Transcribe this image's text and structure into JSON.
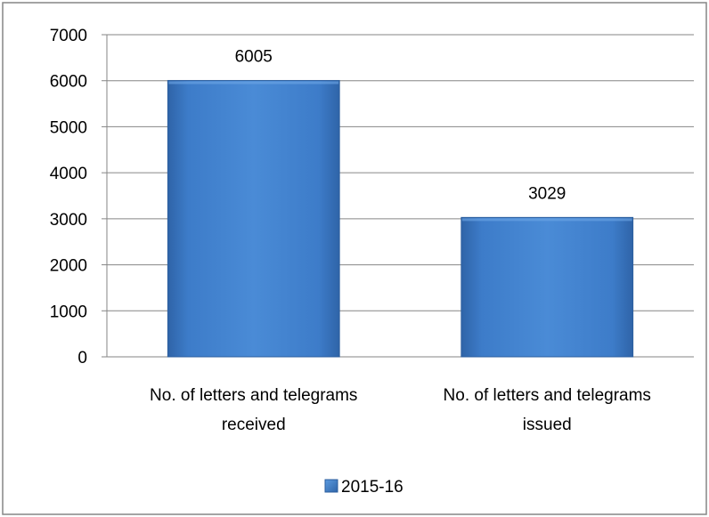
{
  "chart_data": {
    "type": "bar",
    "categories": [
      [
        "No. of letters and telegrams",
        "received"
      ],
      [
        "No. of letters and telegrams",
        "issued"
      ]
    ],
    "series": [
      {
        "name": "2015-16",
        "values": [
          6005,
          3029
        ],
        "color": "#3D7CC9"
      }
    ],
    "data_labels": [
      "6005",
      "3029"
    ],
    "yticks": [
      "0",
      "1000",
      "2000",
      "3000",
      "4000",
      "5000",
      "6000",
      "7000"
    ],
    "ylim": [
      0,
      7000
    ],
    "grid": true,
    "legend": "bottom"
  },
  "colors": {
    "gridline": "#868686",
    "axis": "#868686",
    "frame_border": "#868686",
    "bar_fill": "#3D7CC9",
    "bar_edge": "#2B5E9E"
  }
}
